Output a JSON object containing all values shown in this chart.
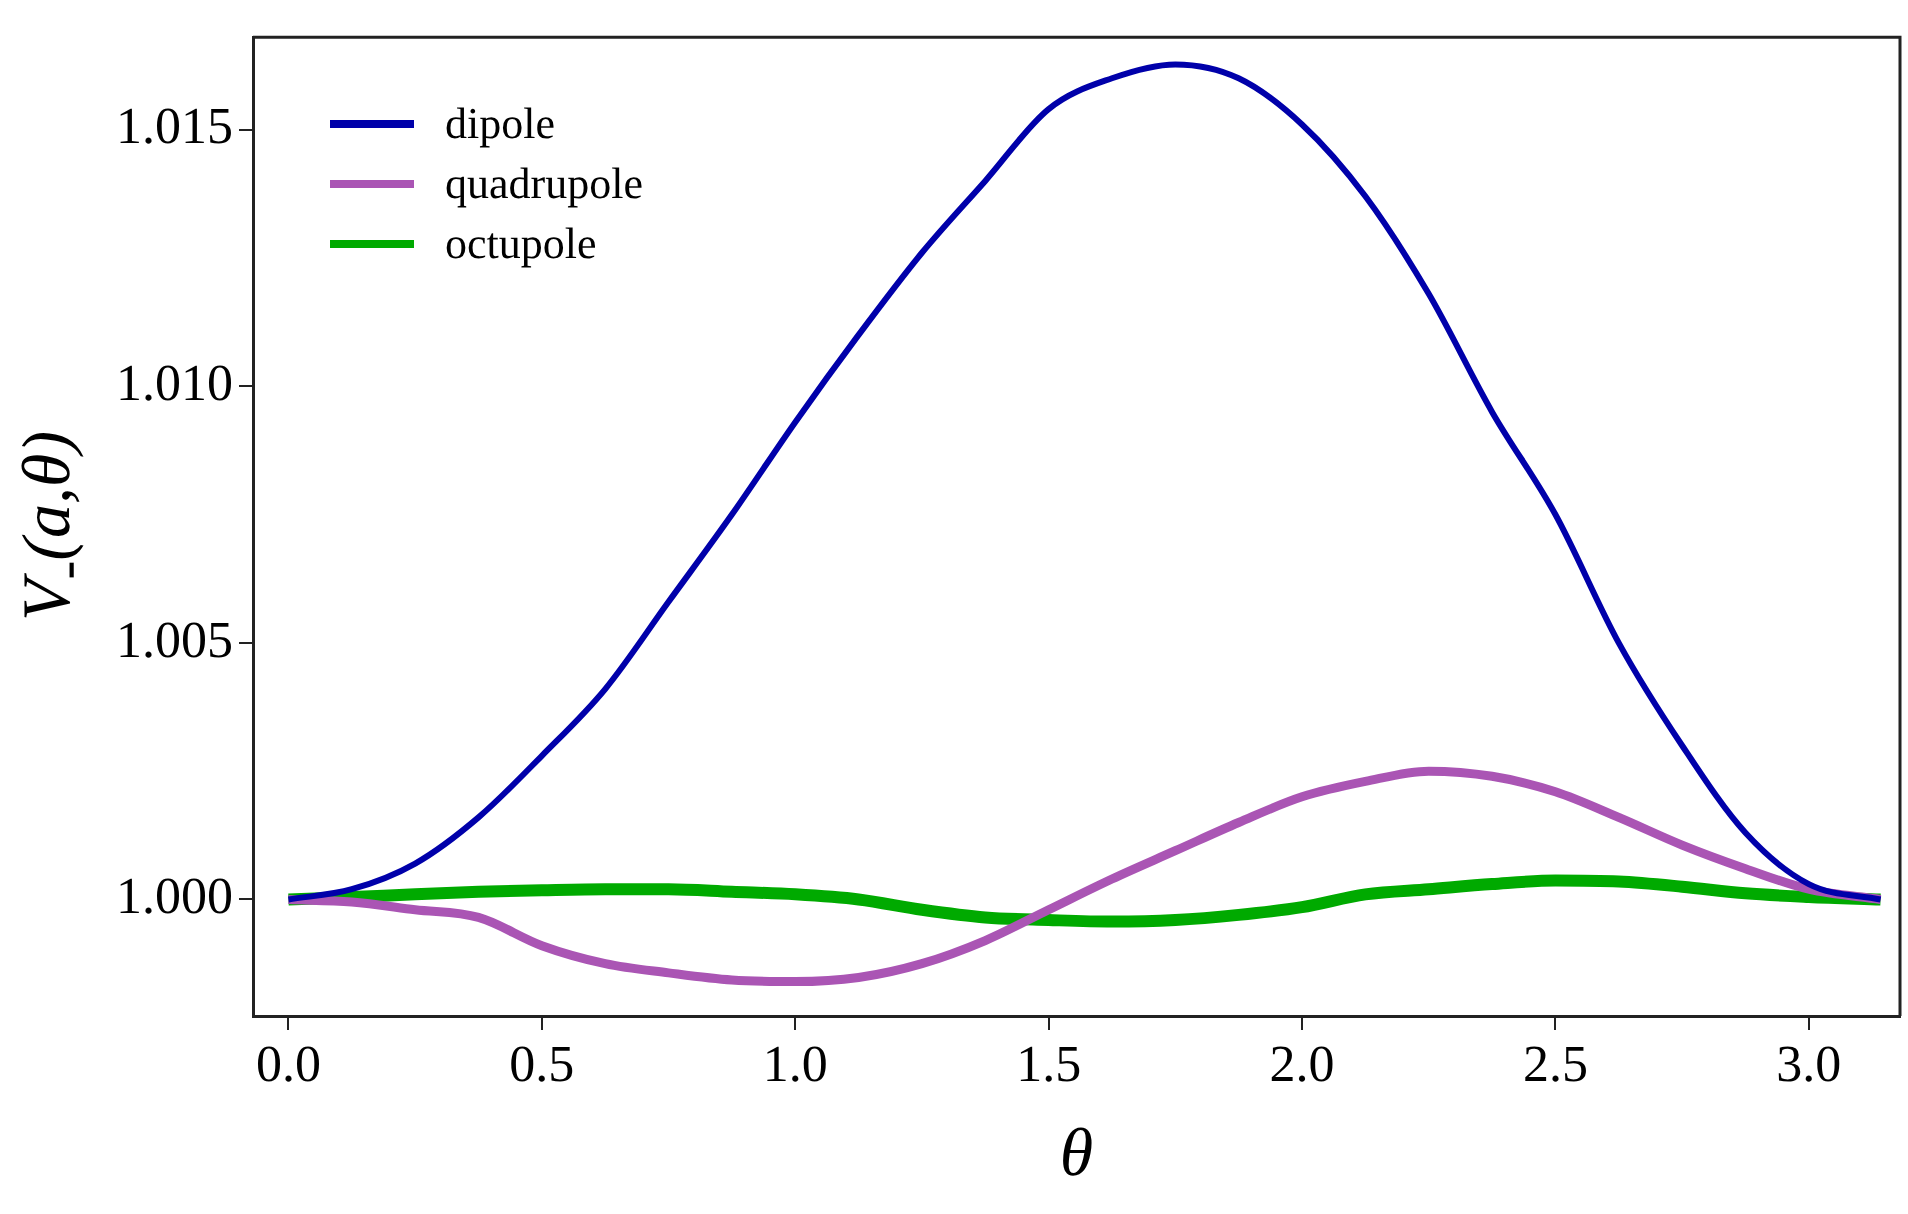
{
  "chart_data": {
    "type": "line",
    "xlabel": "θ",
    "ylabel": "V$_{-}$(a,θ)",
    "x": [
      0,
      0.125,
      0.25,
      0.375,
      0.5,
      0.625,
      0.75,
      0.875,
      1.0,
      1.125,
      1.25,
      1.375,
      1.5,
      1.625,
      1.75,
      1.875,
      2.0,
      2.125,
      2.25,
      2.375,
      2.5,
      2.625,
      2.75,
      2.875,
      3.0,
      3.1416
    ],
    "series": [
      {
        "name": "dipole",
        "color": "#0000aa",
        "values": [
          1.0,
          1.0002,
          1.0007,
          1.0016,
          1.0028,
          1.0041,
          1.0058,
          1.0075,
          1.0093,
          1.011,
          1.0126,
          1.014,
          1.0154,
          1.016,
          1.01627,
          1.016,
          1.0151,
          1.0137,
          1.0118,
          1.0095,
          1.0075,
          1.005,
          1.003,
          1.0013,
          1.0003,
          1.0
        ]
      },
      {
        "name": "quadrupole",
        "color": "#aa55b4",
        "values": [
          1.0,
          0.99995,
          0.9998,
          0.99965,
          0.9991,
          0.99875,
          0.99857,
          0.99843,
          0.9984,
          0.99848,
          0.99875,
          0.9992,
          0.9998,
          1.0004,
          1.00095,
          1.0015,
          1.002,
          1.0023,
          1.0025,
          1.0024,
          1.0021,
          1.0016,
          1.00106,
          1.0006,
          1.0002,
          1.0
        ]
      },
      {
        "name": "octupole",
        "color": "#00aa00",
        "values": [
          1.0,
          1.00005,
          1.0001,
          1.00015,
          1.00018,
          1.0002,
          1.0002,
          1.00015,
          1.0001,
          1.0,
          0.9998,
          0.99965,
          0.9996,
          0.99957,
          0.9996,
          0.9997,
          0.99985,
          1.0001,
          1.0002,
          1.0003,
          1.00037,
          1.00035,
          1.00025,
          1.00012,
          1.00005,
          1.0
        ]
      }
    ],
    "xlim": [
      -0.07,
      3.18
    ],
    "ylim": [
      0.99773,
      1.0168
    ],
    "xticks": [
      {
        "value": 0,
        "label": "0.0"
      },
      {
        "value": 0.5,
        "label": "0.5"
      },
      {
        "value": 1,
        "label": "1.0"
      },
      {
        "value": 1.5,
        "label": "1.5"
      },
      {
        "value": 2,
        "label": "2.0"
      },
      {
        "value": 2.5,
        "label": "2.5"
      },
      {
        "value": 3,
        "label": "3.0"
      }
    ],
    "yticks": [
      {
        "value": 1,
        "label": "1.000"
      },
      {
        "value": 1.005,
        "label": "1.005"
      },
      {
        "value": 1.01,
        "label": "1.010"
      },
      {
        "value": 1.015,
        "label": "1.015"
      }
    ],
    "grid": false,
    "legend": "top left",
    "marker": "none",
    "line_style": "solid"
  }
}
